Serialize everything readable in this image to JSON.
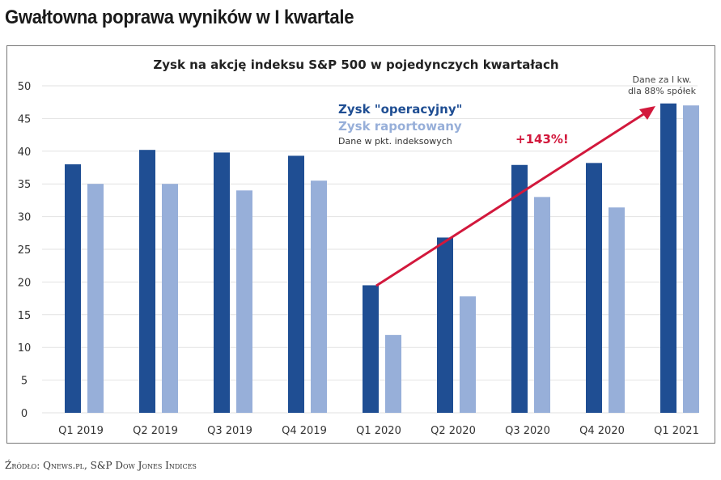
{
  "header": {
    "title": "Gwałtowna poprawa wyników w I kwartale"
  },
  "footer": {
    "source": "Źródło: Qnews.pl, S&P Dow Jones Indices"
  },
  "colors": {
    "operating": "#1f4e93",
    "reported": "#97afd9",
    "arrow": "#d2183c",
    "grid": "#e2e2e2"
  },
  "chart_data": {
    "type": "bar",
    "title": "Zysk na akcję indeksu S&P 500 w pojedynczych kwartałach",
    "categories": [
      "Q1 2019",
      "Q2 2019",
      "Q3 2019",
      "Q4 2019",
      "Q1 2020",
      "Q2 2020",
      "Q3 2020",
      "Q4 2020",
      "Q1 2021"
    ],
    "series": [
      {
        "name": "Zysk \"operacyjny\"",
        "values": [
          38,
          40.2,
          39.8,
          39.3,
          19.5,
          26.8,
          37.9,
          38.2,
          47.3
        ]
      },
      {
        "name": "Zysk raportowany",
        "values": [
          35,
          35,
          34,
          35.5,
          11.9,
          17.8,
          33,
          31.4,
          47
        ]
      }
    ],
    "legend_note": "Dane w pkt. indeksowych",
    "annotations": {
      "growth": "+143%!",
      "note_line1": "Dane za I kw.",
      "note_line2": "dla 88% spółek"
    },
    "ylim": [
      0,
      50
    ],
    "yticks": [
      0,
      5,
      10,
      15,
      20,
      25,
      30,
      35,
      40,
      45,
      50
    ],
    "grid": true,
    "legend_placement": "top-center"
  }
}
